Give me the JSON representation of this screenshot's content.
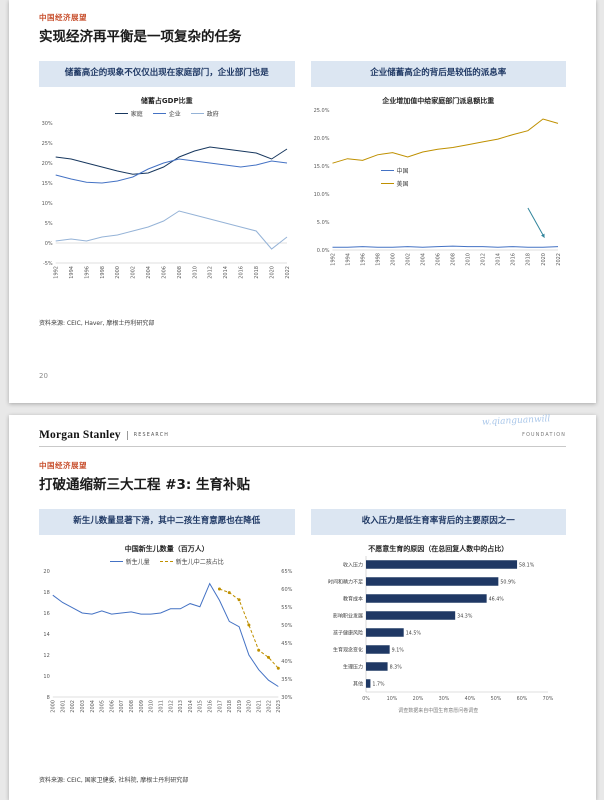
{
  "colors": {
    "eyebrow": "#C8502E",
    "navy": "#1F3864",
    "panel_bg": "#DCE6F2",
    "blue": "#4472C4",
    "gold": "#BF9000",
    "teal": "#31859C"
  },
  "page1": {
    "eyebrow": "中国经济展望",
    "title": "实现经济再平衡是一项复杂的任务",
    "panels": [
      {
        "header": "储蓄高企的现象不仅仅出现在家庭部门，企业部门也是"
      },
      {
        "header": "企业储蓄高企的背后是较低的派息率"
      }
    ],
    "source": "资料来源: CEIC, Haver, 摩根士丹利研究部",
    "page_number": "20"
  },
  "page2": {
    "brand": "Morgan Stanley",
    "brand_division": "RESEARCH",
    "brand_right": "FOUNDATION",
    "watermark": "w.qianguanwill",
    "eyebrow": "中国经济展望",
    "title": "打破通缩新三大工程 #3: 生育补贴",
    "panels": [
      {
        "header": "新生儿数量显著下滑，其中二孩生育意愿也在降低"
      },
      {
        "header": "收入压力是低生育率背后的主要原因之一"
      }
    ],
    "source": "资料来源: CEIC, 国家卫健委, 社科院, 摩根士丹利研究部"
  },
  "chart_data": [
    {
      "id": "savings-gdp",
      "type": "line",
      "title": "储蓄占GDP比重",
      "categories": [
        "1992",
        "1994",
        "1996",
        "1998",
        "2000",
        "2002",
        "2004",
        "2006",
        "2008",
        "2010",
        "2012",
        "2014",
        "2016",
        "2018",
        "2020",
        "2022"
      ],
      "ylim": [
        -5,
        30
      ],
      "ytick_step": 5,
      "ytick_suffix": "%",
      "ytick_decimals": 0,
      "legend_pos": "top",
      "grid": false,
      "series": [
        {
          "name": "家庭",
          "color": "#17375E",
          "values": [
            21.5,
            21.0,
            20.0,
            19.0,
            18.0,
            17.2,
            17.5,
            19.0,
            21.5,
            23.0,
            24.0,
            23.5,
            23.0,
            22.5,
            21.0,
            23.5
          ]
        },
        {
          "name": "企业",
          "color": "#4472C4",
          "values": [
            17.0,
            16.0,
            15.2,
            15.0,
            15.5,
            16.5,
            18.5,
            20.0,
            21.0,
            20.5,
            20.0,
            19.5,
            19.0,
            19.5,
            20.5,
            20.0
          ]
        },
        {
          "name": "政府",
          "color": "#95B3D7",
          "values": [
            0.5,
            1.0,
            0.5,
            1.5,
            2.0,
            3.0,
            4.0,
            5.5,
            8.0,
            7.0,
            6.0,
            5.0,
            4.0,
            3.0,
            -1.5,
            1.5
          ]
        }
      ]
    },
    {
      "id": "dividend-payout",
      "type": "line",
      "title": "企业增加值中给家庭部门派息额比重",
      "categories": [
        "1992",
        "1994",
        "1996",
        "1998",
        "2000",
        "2002",
        "2004",
        "2006",
        "2008",
        "2010",
        "2012",
        "2014",
        "2016",
        "2018",
        "2020",
        "2022"
      ],
      "ylim": [
        0,
        25
      ],
      "ytick_step": 5,
      "ytick_suffix": "%",
      "ytick_decimals": 1,
      "legend_pos": "inside-left",
      "grid": false,
      "series": [
        {
          "name": "中国",
          "color": "#4472C4",
          "values": [
            0.5,
            0.5,
            0.6,
            0.5,
            0.5,
            0.6,
            0.5,
            0.6,
            0.7,
            0.6,
            0.6,
            0.5,
            0.6,
            0.5,
            0.5,
            0.6
          ]
        },
        {
          "name": "美国",
          "color": "#BF9000",
          "values": [
            15.5,
            16.3,
            16.0,
            17.0,
            17.4,
            16.6,
            17.5,
            18.0,
            18.3,
            18.8,
            19.3,
            19.8,
            20.6,
            21.3,
            23.4,
            22.6
          ]
        }
      ],
      "annotation_arrow": {
        "from_i": 13.0,
        "from_y": 7.5,
        "to_i": 14.1,
        "to_y": 2.2,
        "color": "#31859C"
      }
    },
    {
      "id": "newborns",
      "type": "line",
      "title": "中国新生儿数量（百万人）",
      "categories": [
        "2000",
        "2001",
        "2002",
        "2003",
        "2004",
        "2005",
        "2006",
        "2007",
        "2008",
        "2009",
        "2010",
        "2011",
        "2012",
        "2013",
        "2014",
        "2015",
        "2016",
        "2017",
        "2018",
        "2019",
        "2020",
        "2021",
        "2022",
        "2023"
      ],
      "ylim": [
        8,
        20
      ],
      "ytick_step": 2,
      "ytick_suffix": "",
      "ytick_decimals": 0,
      "y2lim": [
        30,
        65
      ],
      "y2tick_step": 5,
      "y2tick_suffix": "%",
      "y2tick_decimals": 0,
      "legend_pos": "top",
      "grid": false,
      "series": [
        {
          "name": "新生儿量",
          "color": "#4472C4",
          "values": [
            17.7,
            17.0,
            16.5,
            16.0,
            15.9,
            16.2,
            15.9,
            16.0,
            16.1,
            15.9,
            15.9,
            16.0,
            16.4,
            16.4,
            16.9,
            16.6,
            18.8,
            17.2,
            15.2,
            14.7,
            12.0,
            10.6,
            9.6,
            9.0
          ]
        },
        {
          "name": "新生儿中二孩占比",
          "color": "#BF9000",
          "dash": true,
          "marker": true,
          "axis": "right",
          "values": [
            null,
            null,
            null,
            null,
            null,
            null,
            null,
            null,
            null,
            null,
            null,
            null,
            null,
            null,
            null,
            null,
            null,
            60,
            59,
            57,
            50,
            43,
            41,
            38
          ]
        }
      ]
    },
    {
      "id": "no-birth-reasons",
      "type": "bar",
      "title": "不愿意生育的原因（在总回复人数中的占比）",
      "categories": [
        "收入压力",
        "时间和精力不足",
        "教育成本",
        "影响职业发展",
        "孩子健康风险",
        "生育观念变化",
        "生理压力",
        "其他"
      ],
      "values": [
        58.1,
        50.9,
        46.4,
        34.3,
        14.5,
        9.1,
        8.3,
        1.7
      ],
      "xlim": [
        0,
        70
      ],
      "xtick_step": 10,
      "xtick_suffix": "%",
      "bar_color": "#1F3864",
      "note": "调查数据来自中国生育意愿问卷调查"
    }
  ]
}
